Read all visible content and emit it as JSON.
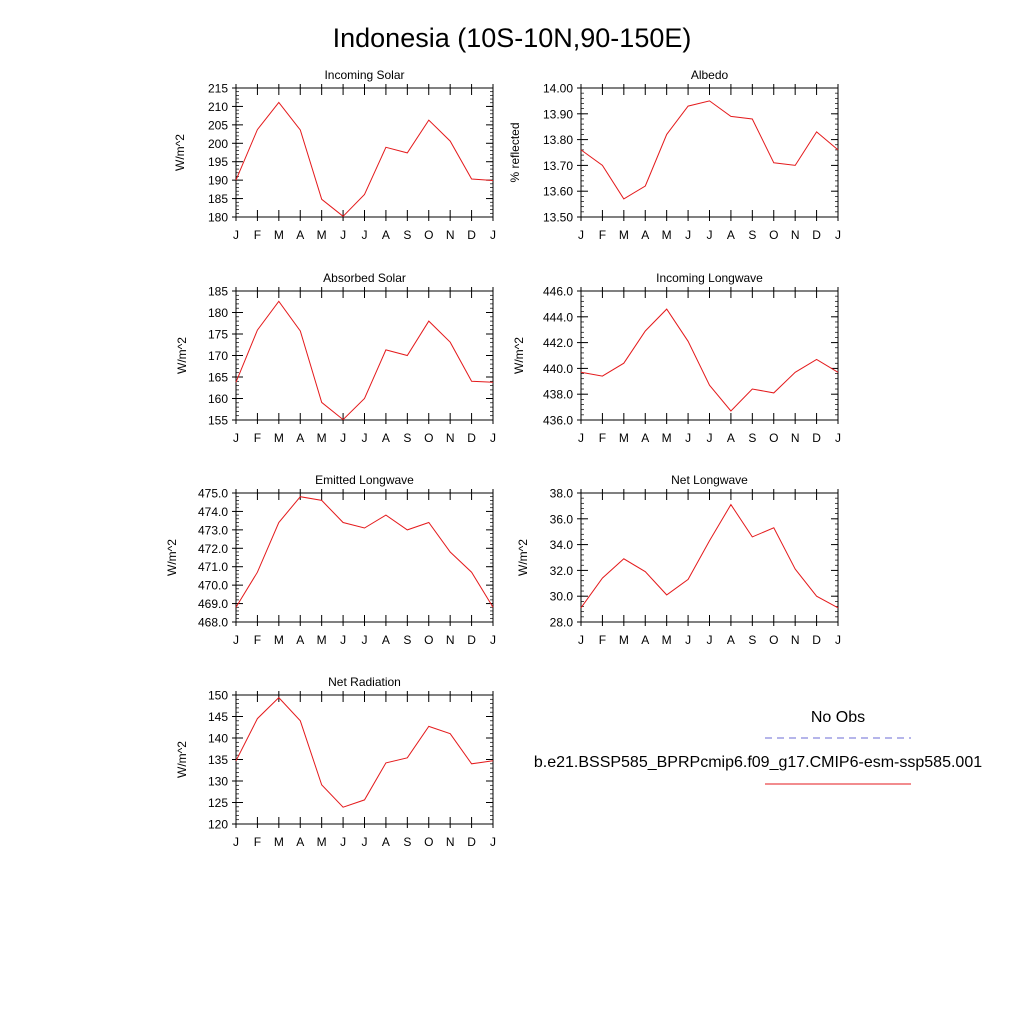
{
  "page_title": "Indonesia (10S-10N,90-150E)",
  "legend": {
    "obs_label": "No Obs",
    "obs_color": "#6b6bd6",
    "model_label": "b.e21.BSSP585_BPRPcmip6.f09_g17.CMIP6-esm-ssp585.001",
    "model_color": "#e41a1c"
  },
  "chart_data": [
    {
      "type": "line",
      "title": "Incoming Solar",
      "ylabel": "W/m^2",
      "ylim": [
        180,
        215
      ],
      "yticks": [
        "180",
        "185",
        "190",
        "195",
        "200",
        "205",
        "210",
        "215"
      ],
      "y_minor_step": 1,
      "x": [
        "J",
        "F",
        "M",
        "A",
        "M",
        "J",
        "J",
        "A",
        "S",
        "O",
        "N",
        "D",
        "J"
      ],
      "series": [
        {
          "values": [
            190.0,
            203.7,
            211.1,
            203.6,
            184.8,
            180.2,
            186.1,
            198.9,
            197.4,
            206.3,
            200.6,
            190.3,
            189.9
          ]
        }
      ]
    },
    {
      "type": "line",
      "title": "Albedo",
      "ylabel": "% reflected",
      "ylim": [
        13.5,
        14.0
      ],
      "yticks": [
        "13.50",
        "13.60",
        "13.70",
        "13.80",
        "13.90",
        "14.00"
      ],
      "y_minor_step": 0.02,
      "x": [
        "J",
        "F",
        "M",
        "A",
        "M",
        "J",
        "J",
        "A",
        "S",
        "O",
        "N",
        "D",
        "J"
      ],
      "series": [
        {
          "values": [
            13.76,
            13.7,
            13.57,
            13.62,
            13.82,
            13.93,
            13.95,
            13.89,
            13.88,
            13.71,
            13.7,
            13.83,
            13.76
          ]
        }
      ]
    },
    {
      "type": "line",
      "title": "Absorbed Solar",
      "ylabel": "W/m^2",
      "ylim": [
        155,
        185
      ],
      "yticks": [
        "155",
        "160",
        "165",
        "170",
        "175",
        "180",
        "185"
      ],
      "y_minor_step": 1,
      "x": [
        "J",
        "F",
        "M",
        "A",
        "M",
        "J",
        "J",
        "A",
        "S",
        "O",
        "N",
        "D",
        "J"
      ],
      "series": [
        {
          "values": [
            163.8,
            175.9,
            182.6,
            175.7,
            159.1,
            155.1,
            160.0,
            171.3,
            170.0,
            178.0,
            173.1,
            164.0,
            163.8
          ]
        }
      ]
    },
    {
      "type": "line",
      "title": "Incoming Longwave",
      "ylabel": "W/m^2",
      "ylim": [
        436,
        446
      ],
      "yticks": [
        "436.0",
        "438.0",
        "440.0",
        "442.0",
        "444.0",
        "446.0"
      ],
      "y_minor_step": 0.4,
      "x": [
        "J",
        "F",
        "M",
        "A",
        "M",
        "J",
        "J",
        "A",
        "S",
        "O",
        "N",
        "D",
        "J"
      ],
      "series": [
        {
          "values": [
            439.7,
            439.4,
            440.4,
            442.9,
            444.6,
            442.1,
            438.7,
            436.7,
            438.4,
            438.1,
            439.7,
            440.7,
            439.7
          ]
        }
      ]
    },
    {
      "type": "line",
      "title": "Emitted Longwave",
      "ylabel": "W/m^2",
      "ylim": [
        468,
        475
      ],
      "yticks": [
        "468.0",
        "469.0",
        "470.0",
        "471.0",
        "472.0",
        "473.0",
        "474.0",
        "475.0"
      ],
      "y_minor_step": 0.2,
      "x": [
        "J",
        "F",
        "M",
        "A",
        "M",
        "J",
        "J",
        "A",
        "S",
        "O",
        "N",
        "D",
        "J"
      ],
      "series": [
        {
          "values": [
            468.8,
            470.7,
            473.4,
            474.8,
            474.6,
            473.4,
            473.1,
            473.8,
            473.0,
            473.4,
            471.8,
            470.7,
            468.8
          ]
        }
      ]
    },
    {
      "type": "line",
      "title": "Net Longwave",
      "ylabel": "W/m^2",
      "ylim": [
        28,
        38
      ],
      "yticks": [
        "28.0",
        "30.0",
        "32.0",
        "34.0",
        "36.0",
        "38.0"
      ],
      "y_minor_step": 0.4,
      "x": [
        "J",
        "F",
        "M",
        "A",
        "M",
        "J",
        "J",
        "A",
        "S",
        "O",
        "N",
        "D",
        "J"
      ],
      "series": [
        {
          "values": [
            29.1,
            31.4,
            32.9,
            31.9,
            30.1,
            31.3,
            34.3,
            37.1,
            34.6,
            35.3,
            32.1,
            30.0,
            29.1
          ]
        }
      ]
    },
    {
      "type": "line",
      "title": "Net Radiation",
      "ylabel": "W/m^2",
      "ylim": [
        120,
        150
      ],
      "yticks": [
        "120",
        "125",
        "130",
        "135",
        "140",
        "145",
        "150"
      ],
      "y_minor_step": 1,
      "x": [
        "J",
        "F",
        "M",
        "A",
        "M",
        "J",
        "J",
        "A",
        "S",
        "O",
        "N",
        "D",
        "J"
      ],
      "series": [
        {
          "values": [
            134.7,
            144.5,
            149.4,
            144.0,
            129.1,
            123.9,
            125.6,
            134.2,
            135.4,
            142.7,
            141.0,
            134.0,
            134.7
          ]
        }
      ]
    }
  ]
}
